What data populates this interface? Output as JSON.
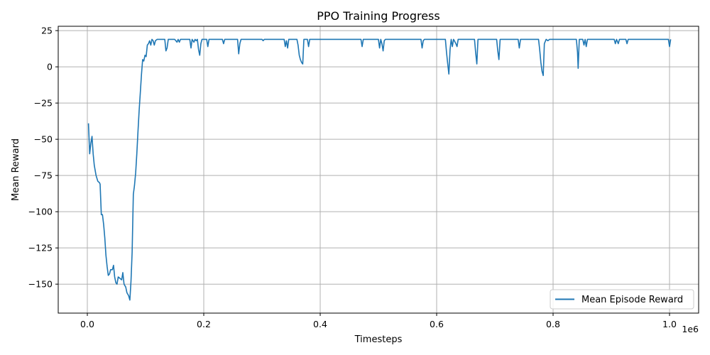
{
  "chart_data": {
    "type": "line",
    "title": "PPO Training Progress",
    "xlabel": "Timesteps",
    "ylabel": "Mean Reward",
    "x_offset_label": "1e6",
    "xlim": [
      -50000,
      1050000
    ],
    "ylim": [
      -170,
      28
    ],
    "x_ticks": [
      0,
      200000,
      400000,
      600000,
      800000,
      1000000
    ],
    "x_tick_labels": [
      "0.0",
      "0.2",
      "0.4",
      "0.6",
      "0.8",
      "1.0"
    ],
    "y_ticks": [
      25,
      0,
      -25,
      -50,
      -75,
      -100,
      -125,
      -150
    ],
    "y_tick_labels": [
      "25",
      "0",
      "−25",
      "−50",
      "−75",
      "−100",
      "−125",
      "−150"
    ],
    "grid": true,
    "legend": {
      "location": "lower-right"
    },
    "series": [
      {
        "name": "Mean Episode Reward",
        "color": "#1f77b4",
        "points": [
          [
            2000,
            -39
          ],
          [
            4000,
            -60
          ],
          [
            6000,
            -53
          ],
          [
            8000,
            -48
          ],
          [
            10000,
            -60
          ],
          [
            12000,
            -68
          ],
          [
            15000,
            -75
          ],
          [
            18000,
            -79
          ],
          [
            21000,
            -80
          ],
          [
            22000,
            -81
          ],
          [
            24000,
            -102
          ],
          [
            26000,
            -102
          ],
          [
            28000,
            -109
          ],
          [
            30000,
            -118
          ],
          [
            32000,
            -130
          ],
          [
            34000,
            -138
          ],
          [
            36000,
            -144
          ],
          [
            38000,
            -143
          ],
          [
            40000,
            -140
          ],
          [
            43000,
            -140
          ],
          [
            45000,
            -137
          ],
          [
            47000,
            -145
          ],
          [
            49000,
            -149
          ],
          [
            51000,
            -150
          ],
          [
            53000,
            -145
          ],
          [
            56000,
            -146
          ],
          [
            59000,
            -147
          ],
          [
            61000,
            -142
          ],
          [
            63000,
            -150
          ],
          [
            66000,
            -152
          ],
          [
            68000,
            -156
          ],
          [
            71000,
            -158
          ],
          [
            73000,
            -161
          ],
          [
            75000,
            -148
          ],
          [
            77000,
            -128
          ],
          [
            79000,
            -88
          ],
          [
            81000,
            -82
          ],
          [
            83000,
            -73
          ],
          [
            85000,
            -60
          ],
          [
            87000,
            -45
          ],
          [
            89000,
            -30
          ],
          [
            91000,
            -18
          ],
          [
            93000,
            -5
          ],
          [
            95000,
            5
          ],
          [
            97000,
            4
          ],
          [
            99000,
            8
          ],
          [
            101000,
            7
          ],
          [
            103000,
            15
          ],
          [
            105000,
            16
          ],
          [
            107000,
            18
          ],
          [
            109000,
            15
          ],
          [
            111000,
            19
          ],
          [
            113000,
            18
          ],
          [
            115000,
            15
          ],
          [
            117000,
            18
          ],
          [
            120000,
            19
          ],
          [
            125000,
            19
          ],
          [
            133000,
            19
          ],
          [
            135000,
            11
          ],
          [
            137000,
            13
          ],
          [
            139000,
            19
          ],
          [
            150000,
            19
          ],
          [
            154000,
            17
          ],
          [
            156000,
            19
          ],
          [
            158000,
            17
          ],
          [
            160000,
            19
          ],
          [
            176000,
            19
          ],
          [
            178000,
            13
          ],
          [
            180000,
            19
          ],
          [
            183000,
            17
          ],
          [
            185000,
            19
          ],
          [
            187000,
            18
          ],
          [
            189000,
            19
          ],
          [
            191000,
            12
          ],
          [
            193000,
            8
          ],
          [
            195000,
            16
          ],
          [
            197000,
            19
          ],
          [
            205000,
            19
          ],
          [
            207000,
            14
          ],
          [
            209000,
            19
          ],
          [
            232000,
            19
          ],
          [
            234000,
            16
          ],
          [
            236000,
            19
          ],
          [
            258000,
            19
          ],
          [
            260000,
            9
          ],
          [
            262000,
            16
          ],
          [
            264000,
            19
          ],
          [
            300000,
            19
          ],
          [
            302000,
            18
          ],
          [
            304000,
            19
          ],
          [
            338000,
            19
          ],
          [
            340000,
            14
          ],
          [
            342000,
            18
          ],
          [
            344000,
            13
          ],
          [
            346000,
            19
          ],
          [
            360000,
            19
          ],
          [
            362000,
            15
          ],
          [
            364000,
            8
          ],
          [
            366000,
            5
          ],
          [
            368000,
            3
          ],
          [
            370000,
            2
          ],
          [
            372000,
            19
          ],
          [
            378000,
            19
          ],
          [
            380000,
            14
          ],
          [
            382000,
            19
          ],
          [
            470000,
            19
          ],
          [
            472000,
            14
          ],
          [
            474000,
            19
          ],
          [
            500000,
            19
          ],
          [
            502000,
            13
          ],
          [
            504000,
            19
          ],
          [
            506000,
            16
          ],
          [
            508000,
            11
          ],
          [
            510000,
            18
          ],
          [
            512000,
            19
          ],
          [
            573000,
            19
          ],
          [
            575000,
            13
          ],
          [
            577000,
            18
          ],
          [
            579000,
            19
          ],
          [
            615000,
            19
          ],
          [
            617000,
            10
          ],
          [
            619000,
            2
          ],
          [
            621000,
            -5
          ],
          [
            623000,
            12
          ],
          [
            625000,
            19
          ],
          [
            627000,
            14
          ],
          [
            629000,
            19
          ],
          [
            633000,
            16
          ],
          [
            635000,
            14
          ],
          [
            637000,
            19
          ],
          [
            665000,
            19
          ],
          [
            667000,
            10
          ],
          [
            669000,
            2
          ],
          [
            671000,
            19
          ],
          [
            703000,
            19
          ],
          [
            705000,
            11
          ],
          [
            707000,
            5
          ],
          [
            709000,
            19
          ],
          [
            740000,
            19
          ],
          [
            742000,
            13
          ],
          [
            744000,
            19
          ],
          [
            775000,
            19
          ],
          [
            777000,
            12
          ],
          [
            779000,
            3
          ],
          [
            781000,
            -3
          ],
          [
            783000,
            -6
          ],
          [
            785000,
            16
          ],
          [
            788000,
            19
          ],
          [
            791000,
            18
          ],
          [
            794000,
            19
          ],
          [
            840000,
            19
          ],
          [
            842000,
            10
          ],
          [
            843000,
            -1
          ],
          [
            845000,
            19
          ],
          [
            851000,
            19
          ],
          [
            853000,
            15
          ],
          [
            855000,
            19
          ],
          [
            857000,
            14
          ],
          [
            859000,
            19
          ],
          [
            905000,
            19
          ],
          [
            907000,
            16
          ],
          [
            909000,
            19
          ],
          [
            912000,
            16
          ],
          [
            914000,
            19
          ],
          [
            925000,
            19
          ],
          [
            927000,
            16
          ],
          [
            929000,
            19
          ],
          [
            998000,
            19
          ],
          [
            1000000,
            14
          ],
          [
            1002000,
            19
          ]
        ]
      }
    ]
  }
}
